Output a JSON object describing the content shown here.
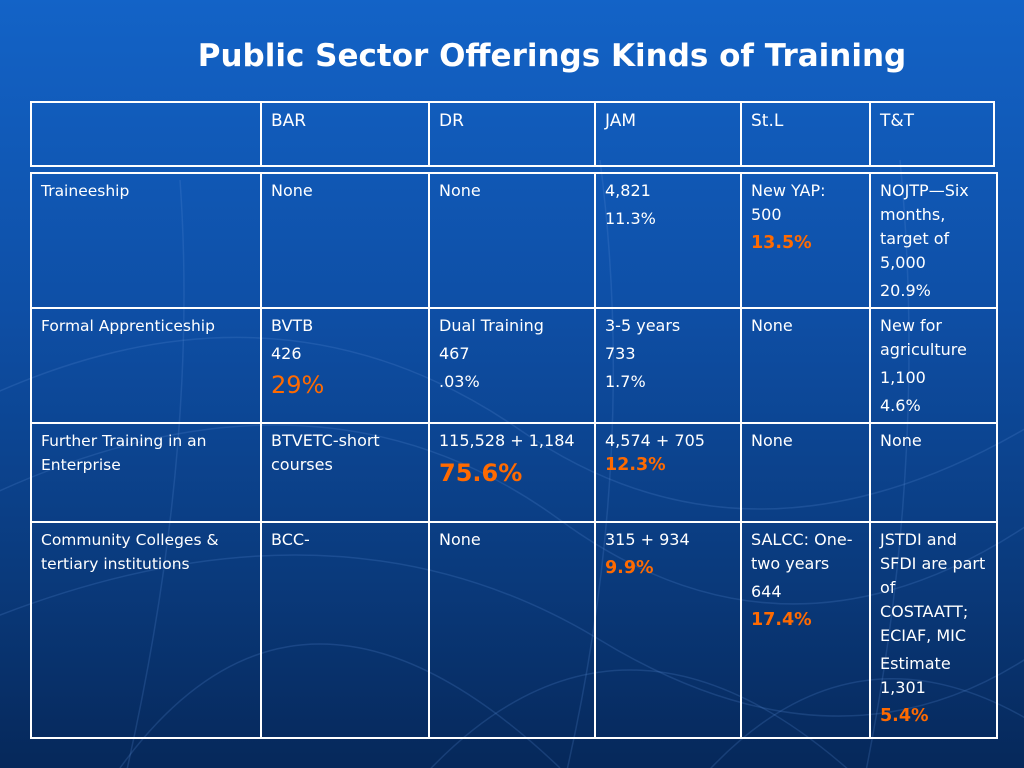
{
  "slide": {
    "title": "Public Sector Offerings Kinds of Training"
  },
  "header": {
    "columns": [
      "",
      "BAR",
      "DR",
      "JAM",
      "St.L",
      "T&T"
    ]
  },
  "rows": [
    {
      "label": "Traineeship",
      "cells": [
        [
          "None"
        ],
        [
          "None"
        ],
        [
          "4,821",
          "11.3%"
        ],
        [
          "New YAP: 500",
          "13.5%"
        ],
        [
          "NOJTP—Six months, target of 5,000",
          "20.9%"
        ]
      ]
    },
    {
      "label": "Formal Apprenticeship",
      "cells": [
        [
          "BVTB",
          "426",
          "29%"
        ],
        [
          "Dual Training",
          "467",
          ".03%"
        ],
        [
          "3-5 years",
          "733",
          "1.7%"
        ],
        [
          "None"
        ],
        [
          "New for agriculture",
          "1,100",
          "4.6%"
        ]
      ]
    },
    {
      "label": "Further Training in an Enterprise",
      "cells": [
        [
          "BTVETC-short courses"
        ],
        [
          "115,528 + 1,184",
          "75.6%"
        ],
        [
          "4,574 + 705",
          "12.3%"
        ],
        [
          "None"
        ],
        [
          "None"
        ]
      ]
    },
    {
      "label": "Community Colleges & tertiary institutions",
      "cells": [
        [
          "BCC-"
        ],
        [
          "None"
        ],
        [
          "315 + 934",
          "9.9%"
        ],
        [
          "SALCC: One-two years",
          "644",
          "17.4%"
        ],
        [
          "JSTDI and SFDI are part of COSTAATT; ECIAF, MIC",
          "Estimate 1,301",
          "5.4%"
        ]
      ]
    }
  ],
  "colors": {
    "background_top": "#1363c7",
    "background_bottom": "#06285a",
    "highlight": "#ff6a00",
    "text": "#ffffff"
  }
}
